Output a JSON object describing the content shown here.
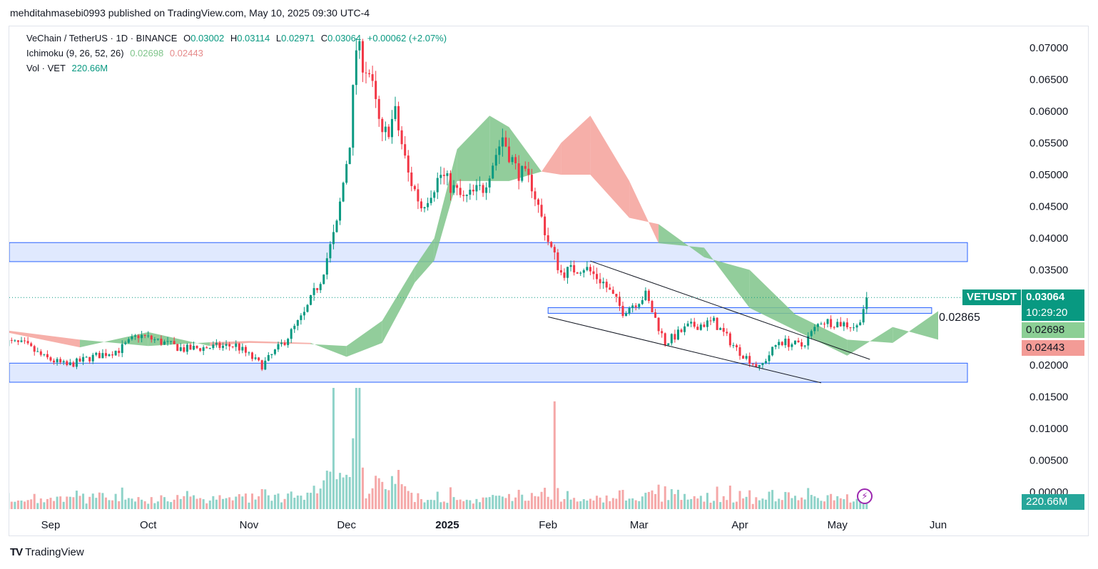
{
  "header": {
    "publisher_line": "mehditahmasebi0993 published on TradingView.com, May 10, 2025 09:30 UTC-4"
  },
  "legend": {
    "symbol": "VeChain / TetherUS · 1D · BINANCE",
    "open_label": "O",
    "open": "0.03002",
    "high_label": "H",
    "high": "0.03114",
    "low_label": "L",
    "low": "0.02971",
    "close_label": "C",
    "close": "0.03064",
    "change": "+0.00062 (+2.07%)",
    "ichimoku_label": "Ichimoku (9, 26, 52, 26)",
    "ichimoku_a": "0.02698",
    "ichimoku_b": "0.02443",
    "vol_label": "Vol · VET",
    "vol_value": "220.66M"
  },
  "price_tags": {
    "ticker": "VETUSDT",
    "last": "0.03064",
    "countdown": "10:29:20",
    "span_a": "0.02698",
    "span_b": "0.02443",
    "volume": "220.66M",
    "annotation": "0.02865"
  },
  "footer": {
    "brand": "TradingView"
  },
  "colors": {
    "up": "#089981",
    "down": "#f23645",
    "cloud_bull": "#7fc48a",
    "cloud_bear": "#f4a19a",
    "zone_fill": "#d6e2fd",
    "zone_border": "#2962ff",
    "vol_up": "#8fd3c9",
    "vol_down": "#f5a8a8"
  },
  "icons": {
    "alert": "bolt-icon",
    "brand": "tradingview-logo-icon"
  },
  "chart_data": {
    "type": "candlestick",
    "symbol": "VETUSDT",
    "timeframe": "1D",
    "y_axis": {
      "ticks": [
        "0.07000",
        "0.06500",
        "0.06000",
        "0.05500",
        "0.05000",
        "0.04500",
        "0.04000",
        "0.03500",
        "0.03000",
        "0.02500",
        "0.02000",
        "0.01500",
        "0.01000",
        "0.00500",
        "0.00000"
      ],
      "ylim": [
        0,
        0.073
      ]
    },
    "x_axis": {
      "labels": [
        "Sep",
        "Oct",
        "Nov",
        "Dec",
        "2025",
        "Feb",
        "Mar",
        "Apr",
        "May",
        "Jun"
      ],
      "label_dates": [
        "2024-09-01",
        "2024-10-01",
        "2024-11-01",
        "2024-12-01",
        "2025-01-01",
        "2025-02-01",
        "2025-03-01",
        "2025-04-01",
        "2025-05-01",
        "2025-06-01"
      ]
    },
    "close_path": [
      [
        "2024-08-18",
        0.0237
      ],
      [
        "2024-08-24",
        0.0232
      ],
      [
        "2024-08-30",
        0.0212
      ],
      [
        "2024-09-06",
        0.0199
      ],
      [
        "2024-09-14",
        0.0213
      ],
      [
        "2024-09-22",
        0.0224
      ],
      [
        "2024-09-28",
        0.0247
      ],
      [
        "2024-10-04",
        0.0238
      ],
      [
        "2024-10-12",
        0.0225
      ],
      [
        "2024-10-20",
        0.0228
      ],
      [
        "2024-10-28",
        0.0231
      ],
      [
        "2024-11-05",
        0.0199
      ],
      [
        "2024-11-12",
        0.0238
      ],
      [
        "2024-11-18",
        0.028
      ],
      [
        "2024-11-23",
        0.0335
      ],
      [
        "2024-11-28",
        0.042
      ],
      [
        "2024-12-02",
        0.0555
      ],
      [
        "2024-12-04",
        0.07
      ],
      [
        "2024-12-08",
        0.066
      ],
      [
        "2024-12-12",
        0.0555
      ],
      [
        "2024-12-16",
        0.0595
      ],
      [
        "2024-12-20",
        0.05
      ],
      [
        "2024-12-24",
        0.045
      ],
      [
        "2024-12-30",
        0.05
      ],
      [
        "2025-01-06",
        0.046
      ],
      [
        "2025-01-12",
        0.048
      ],
      [
        "2025-01-18",
        0.056
      ],
      [
        "2025-01-22",
        0.051
      ],
      [
        "2025-01-27",
        0.0485
      ],
      [
        "2025-02-01",
        0.0395
      ],
      [
        "2025-02-05",
        0.0345
      ],
      [
        "2025-02-12",
        0.0355
      ],
      [
        "2025-02-18",
        0.033
      ],
      [
        "2025-02-24",
        0.0285
      ],
      [
        "2025-03-03",
        0.031
      ],
      [
        "2025-03-09",
        0.0235
      ],
      [
        "2025-03-16",
        0.026
      ],
      [
        "2025-03-24",
        0.0268
      ],
      [
        "2025-03-31",
        0.0225
      ],
      [
        "2025-04-07",
        0.0195
      ],
      [
        "2025-04-13",
        0.0238
      ],
      [
        "2025-04-20",
        0.023
      ],
      [
        "2025-04-26",
        0.027
      ],
      [
        "2025-05-03",
        0.0265
      ],
      [
        "2025-05-07",
        0.026
      ],
      [
        "2025-05-10",
        0.03064
      ]
    ],
    "ichimoku": {
      "period": [
        9,
        26,
        52,
        26
      ],
      "span_a_last": 0.02698,
      "span_b_last": 0.02443,
      "span_a": [
        [
          "2024-08-18",
          0.0252
        ],
        [
          "2024-09-10",
          0.0228
        ],
        [
          "2024-10-01",
          0.0252
        ],
        [
          "2024-10-20",
          0.023
        ],
        [
          "2024-11-01",
          0.0235
        ],
        [
          "2024-11-20",
          0.0233
        ],
        [
          "2024-12-01",
          0.023
        ],
        [
          "2024-12-12",
          0.027
        ],
        [
          "2024-12-22",
          0.0355
        ],
        [
          "2024-12-28",
          0.04
        ],
        [
          "2025-01-04",
          0.054
        ],
        [
          "2025-01-14",
          0.0593
        ],
        [
          "2025-01-20",
          0.0575
        ],
        [
          "2025-01-30",
          0.0505
        ],
        [
          "2025-02-05",
          0.05
        ],
        [
          "2025-02-14",
          0.05
        ],
        [
          "2025-02-26",
          0.0432
        ],
        [
          "2025-03-07",
          0.0422
        ],
        [
          "2025-03-21",
          0.037
        ],
        [
          "2025-04-04",
          0.035
        ],
        [
          "2025-04-18",
          0.028
        ],
        [
          "2025-05-04",
          0.024
        ],
        [
          "2025-05-18",
          0.0235
        ],
        [
          "2025-06-01",
          0.0285
        ]
      ],
      "span_b": [
        [
          "2024-08-18",
          0.0255
        ],
        [
          "2024-09-10",
          0.024
        ],
        [
          "2024-10-01",
          0.023
        ],
        [
          "2024-10-20",
          0.0236
        ],
        [
          "2024-11-01",
          0.0238
        ],
        [
          "2024-11-20",
          0.0235
        ],
        [
          "2024-12-01",
          0.0213
        ],
        [
          "2024-12-12",
          0.0235
        ],
        [
          "2024-12-22",
          0.033
        ],
        [
          "2024-12-28",
          0.0365
        ],
        [
          "2025-01-04",
          0.049
        ],
        [
          "2025-01-14",
          0.049
        ],
        [
          "2025-01-20",
          0.049
        ],
        [
          "2025-01-30",
          0.0505
        ],
        [
          "2025-02-05",
          0.055
        ],
        [
          "2025-02-14",
          0.0593
        ],
        [
          "2025-02-26",
          0.049
        ],
        [
          "2025-03-07",
          0.0392
        ],
        [
          "2025-03-21",
          0.0385
        ],
        [
          "2025-04-04",
          0.029
        ],
        [
          "2025-04-18",
          0.0255
        ],
        [
          "2025-05-04",
          0.0215
        ],
        [
          "2025-05-18",
          0.026
        ],
        [
          "2025-06-01",
          0.024
        ]
      ]
    },
    "zones": [
      {
        "from": 0.0363,
        "to": 0.0393,
        "date_from": "2024-08-18",
        "date_to": "2025-06-10"
      },
      {
        "from": 0.0173,
        "to": 0.0203,
        "date_from": "2024-08-18",
        "date_to": "2025-06-10"
      },
      {
        "from": 0.02815,
        "to": 0.02905,
        "date_from": "2025-02-01",
        "date_to": "2025-05-30"
      }
    ],
    "trendlines": [
      {
        "from": [
          "2025-02-01",
          0.0276
        ],
        "to": [
          "2025-04-26",
          0.0172
        ]
      },
      {
        "from": [
          "2025-02-14",
          0.0364
        ],
        "to": [
          "2025-05-11",
          0.0209
        ]
      }
    ],
    "last_price": 0.03064,
    "volume": {
      "last": "220.66M",
      "peak_dates": [
        "2024-11-27",
        "2024-12-04",
        "2024-12-05",
        "2025-02-03"
      ]
    }
  }
}
